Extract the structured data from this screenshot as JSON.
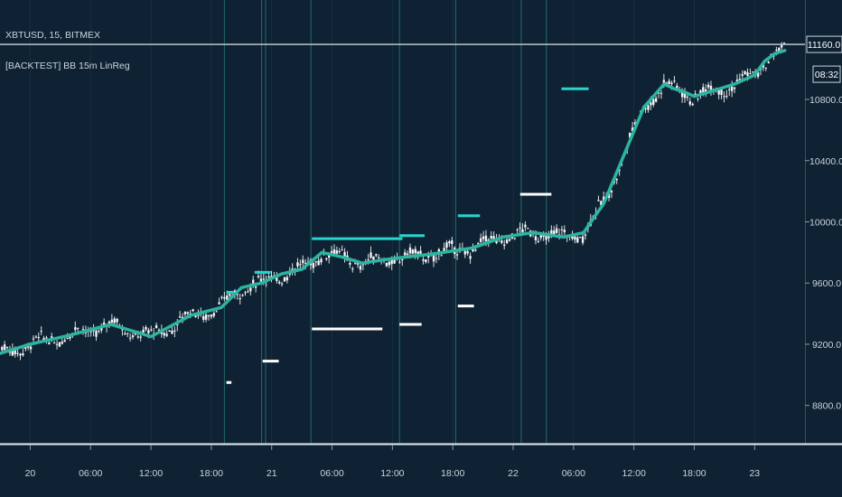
{
  "header": {
    "symbol_line": "XBTUSD, 15, BITMEX",
    "indicator_line": "[BACKTEST] BB 15m LinReg"
  },
  "price_axis": {
    "ticks": [
      "10800.0",
      "10400.0",
      "10000.0",
      "9600.0",
      "9200.0",
      "8800.0"
    ],
    "last_price_label": "11160.0",
    "countdown_label": "08:32"
  },
  "time_axis": {
    "ticks": [
      "20",
      "06:00",
      "12:00",
      "18:00",
      "21",
      "06:00",
      "12:00",
      "18:00",
      "22",
      "06:00",
      "12:00",
      "18:00",
      "23"
    ]
  },
  "colors": {
    "background": "#0f2233",
    "candle": "#ffffff",
    "regression_line": "#2bb5a0",
    "entry_level": "#2bd3cf",
    "exit_level": "#ffffff",
    "session_marker": "#1f6b6b",
    "last_price_line": "#b9c4cc"
  },
  "chart_data": {
    "type": "line",
    "title": "XBTUSD, 15, BITMEX",
    "x_unit": "hours since 20 00:00",
    "xlim": [
      -3,
      77
    ],
    "ylim": [
      8550,
      11450
    ],
    "last_price": 11160,
    "series": [
      {
        "name": "[BACKTEST] BB 15m LinReg",
        "x": [
          -3,
          0,
          4,
          8,
          12,
          16,
          19,
          21,
          23,
          25,
          27,
          29,
          31,
          33,
          36,
          40,
          44,
          47,
          50,
          53,
          55,
          57,
          61,
          63,
          64,
          65,
          66,
          67,
          68,
          69,
          70,
          72,
          73,
          74,
          75
        ],
        "values": [
          9140,
          9200,
          9260,
          9330,
          9250,
          9390,
          9440,
          9570,
          9600,
          9660,
          9690,
          9800,
          9770,
          9730,
          9760,
          9790,
          9830,
          9900,
          9930,
          9900,
          9930,
          10120,
          10750,
          10900,
          10870,
          10850,
          10820,
          10840,
          10860,
          10880,
          10900,
          10960,
          11050,
          11100,
          11120
        ]
      }
    ],
    "entry_levels": [
      {
        "x0": 19.5,
        "x1": 20.2,
        "y": 9540
      },
      {
        "x0": 22.3,
        "x1": 23.9,
        "y": 9670
      },
      {
        "x0": 28.0,
        "x1": 37.0,
        "y": 9890
      },
      {
        "x0": 36.7,
        "x1": 39.2,
        "y": 9910
      },
      {
        "x0": 42.5,
        "x1": 44.7,
        "y": 10040
      },
      {
        "x0": 52.8,
        "x1": 55.5,
        "y": 10870
      }
    ],
    "exit_levels": [
      {
        "x0": 19.5,
        "x1": 20.0,
        "y": 8950
      },
      {
        "x0": 23.1,
        "x1": 24.7,
        "y": 9090
      },
      {
        "x0": 28.0,
        "x1": 35.0,
        "y": 9300
      },
      {
        "x0": 36.7,
        "x1": 38.9,
        "y": 9330
      },
      {
        "x0": 42.5,
        "x1": 44.1,
        "y": 9450
      },
      {
        "x0": 48.7,
        "x1": 51.8,
        "y": 10180
      }
    ],
    "session_markers": [
      {
        "x": 19.3
      },
      {
        "x": 23.0
      },
      {
        "x": 23.4
      },
      {
        "x": 27.9
      },
      {
        "x": 36.7
      },
      {
        "x": 42.3
      },
      {
        "x": 48.8
      },
      {
        "x": 51.3
      }
    ]
  }
}
